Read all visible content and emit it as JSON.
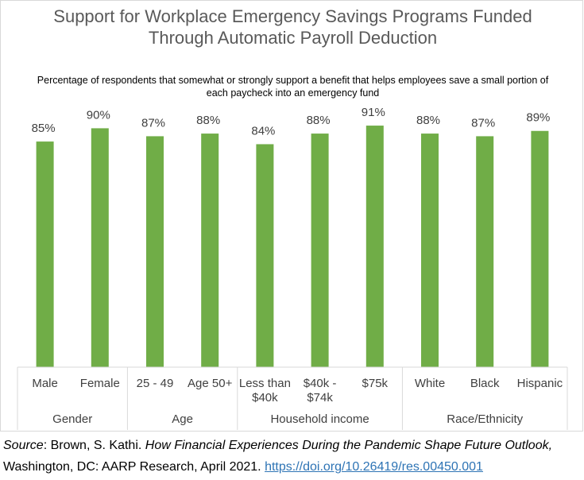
{
  "chart_data": {
    "type": "bar",
    "title": "Support for Workplace Emergency Savings Programs Funded Through Automatic Payroll Deduction",
    "subtitle": "Percentage of respondents that somewhat or strongly support a benefit that helps employees save a small portion of each paycheck into an emergency fund",
    "categories": [
      {
        "lines": [
          "Male"
        ],
        "group": "Gender"
      },
      {
        "lines": [
          "Female"
        ],
        "group": "Gender"
      },
      {
        "lines": [
          "25 - 49"
        ],
        "group": "Age"
      },
      {
        "lines": [
          "Age 50+"
        ],
        "group": "Age"
      },
      {
        "lines": [
          "Less than",
          "$40k"
        ],
        "group": "Household income"
      },
      {
        "lines": [
          "$40k -",
          "$74k"
        ],
        "group": "Household income"
      },
      {
        "lines": [
          "$75k"
        ],
        "group": "Household income"
      },
      {
        "lines": [
          "White"
        ],
        "group": "Race/Ethnicity"
      },
      {
        "lines": [
          "Black"
        ],
        "group": "Race/Ethnicity"
      },
      {
        "lines": [
          "Hispanic"
        ],
        "group": "Race/Ethnicity"
      }
    ],
    "groups": [
      "Gender",
      "Age",
      "Household income",
      "Race/Ethnicity"
    ],
    "values": [
      85,
      90,
      87,
      88,
      84,
      88,
      91,
      88,
      87,
      89
    ],
    "data_labels": [
      "85%",
      "90%",
      "87%",
      "88%",
      "84%",
      "88%",
      "91%",
      "88%",
      "87%",
      "89%"
    ],
    "ylim": [
      0,
      100
    ],
    "grid": false,
    "legend": "none",
    "bar_color": "#70ad47"
  },
  "source": {
    "label": "Source",
    "sep": ": ",
    "author": "Brown, S. Kathi. ",
    "work": "How Financial Experiences During the Pandemic Shape Future Outlook,",
    "publisher": " Washington, DC: AARP Research, April 2021. ",
    "link": "https://doi.org/10.26419/res.00450.001"
  }
}
